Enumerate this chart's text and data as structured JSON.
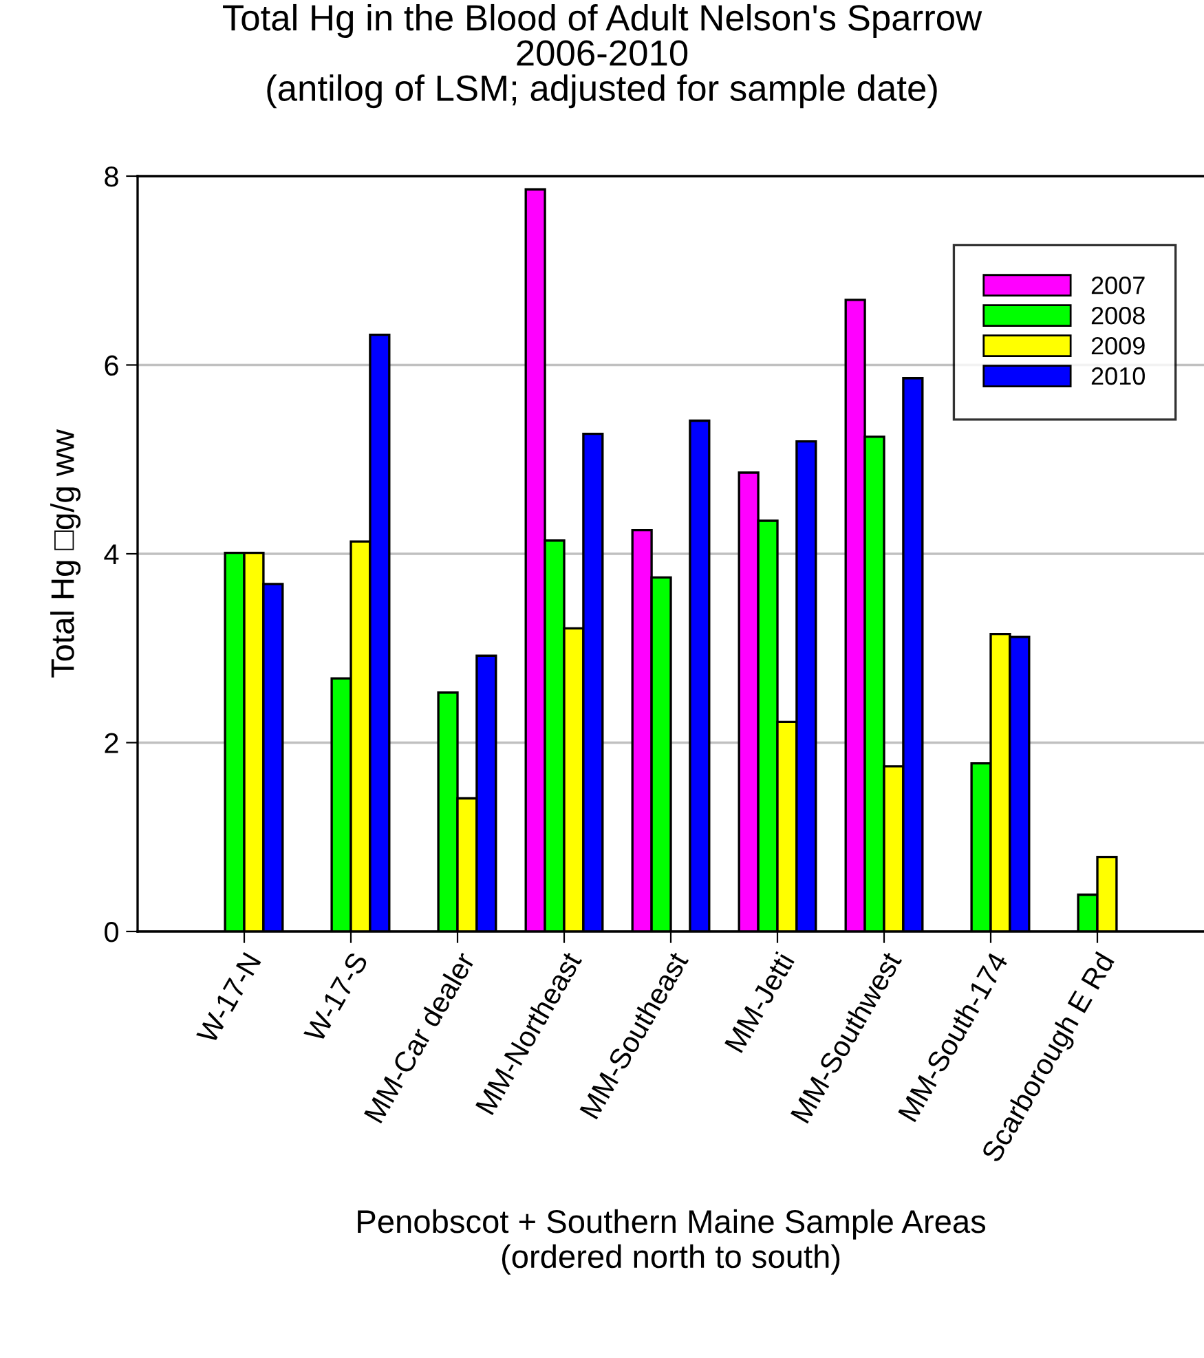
{
  "chart_data": {
    "type": "bar",
    "title": "Total Hg in the Blood of Adult Nelson's Sparrow\n2006-2010\n(antilog of LSM; adjusted for sample date)",
    "xlabel": "Penobscot + Southern Maine Sample Areas\n(ordered north to south)",
    "ylabel": "Total Hg □g/g ww",
    "categories": [
      "W-17-N",
      "W-17-S",
      "MM-Car dealer",
      "MM-Northeast",
      "MM-Southeast",
      "MM-Jetti",
      "MM-Southwest",
      "MM-South-174",
      "Scarborough E Rd"
    ],
    "series": [
      {
        "name": "2007",
        "color": "#ff00ff",
        "values": [
          null,
          null,
          null,
          7.86,
          4.25,
          4.86,
          6.69,
          null,
          null
        ]
      },
      {
        "name": "2008",
        "color": "#00ff00",
        "values": [
          4.01,
          2.68,
          2.53,
          4.14,
          3.75,
          4.35,
          5.24,
          1.78,
          0.39
        ]
      },
      {
        "name": "2009",
        "color": "#ffff00",
        "values": [
          4.01,
          4.13,
          1.41,
          3.21,
          null,
          2.22,
          1.75,
          3.15,
          0.79
        ]
      },
      {
        "name": "2010",
        "color": "#0000ff",
        "values": [
          3.68,
          6.32,
          2.92,
          5.27,
          5.41,
          5.19,
          5.86,
          3.12,
          null
        ]
      }
    ],
    "ylim": [
      0,
      8
    ],
    "yticks": [
      0,
      2,
      4,
      6,
      8
    ],
    "grid": "y",
    "legend": "top right"
  }
}
